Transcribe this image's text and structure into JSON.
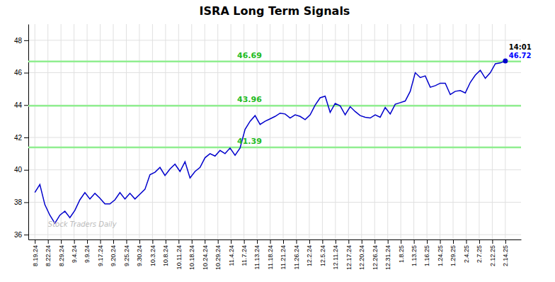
{
  "chart_data": {
    "type": "line",
    "title": "ISRA Long Term Signals",
    "color": "#0000CC",
    "x": [
      0,
      0.383,
      0.766,
      1.1489,
      1.5319,
      1.9149,
      2.2979,
      2.6809,
      3.0638,
      3.4468,
      3.8298,
      4.2128,
      4.5957,
      4.9787,
      5.3617,
      5.7447,
      6.1277,
      6.5106,
      6.8936,
      7.2766,
      7.6596,
      8.0426,
      8.4255,
      8.8085,
      9.1915,
      9.5745,
      9.9574,
      10.3404,
      10.7234,
      11.1064,
      11.4894,
      11.8723,
      12.2553,
      12.6383,
      13.0213,
      13.4043,
      13.7872,
      14.1702,
      14.5532,
      14.9362,
      15.3191,
      15.7021,
      16.0851,
      16.4681,
      16.8511,
      17.234,
      17.617,
      18,
      18.383,
      18.766,
      19.1489,
      19.5319,
      19.9149,
      20.2979,
      20.6809,
      21.0638,
      21.4468,
      21.8298,
      22.2128,
      22.5957,
      22.9787,
      23.3617,
      23.7447,
      24.1277,
      24.5106,
      24.8936,
      25.2766,
      25.6596,
      26.0426,
      26.4255,
      26.8085,
      27.1915,
      27.5745,
      27.9574,
      28.3404,
      28.7234,
      29.1064,
      29.4894,
      29.8723,
      30.2553,
      30.6383,
      31.0213,
      31.4043,
      31.7872,
      32.1702,
      32.5532,
      32.9362,
      33.3191,
      33.7021,
      34.0851,
      34.4681,
      34.8511,
      35.234,
      35.617,
      36
    ],
    "values": [
      38.6,
      39.1,
      37.85,
      37.2,
      36.7,
      37.2,
      37.45,
      37.05,
      37.5,
      38.15,
      38.6,
      38.2,
      38.55,
      38.25,
      37.9,
      37.9,
      38.15,
      38.6,
      38.2,
      38.55,
      38.2,
      38.5,
      38.8,
      39.7,
      39.85,
      40.15,
      39.65,
      40.05,
      40.35,
      39.9,
      40.5,
      39.5,
      39.9,
      40.15,
      40.75,
      41.0,
      40.85,
      41.2,
      41.0,
      41.35,
      40.9,
      41.35,
      42.5,
      43.0,
      43.35,
      42.8,
      43.0,
      43.15,
      43.3,
      43.5,
      43.45,
      43.2,
      43.4,
      43.3,
      43.1,
      43.4,
      44.0,
      44.45,
      44.55,
      43.55,
      44.1,
      43.95,
      43.4,
      43.9,
      43.6,
      43.35,
      43.25,
      43.2,
      43.4,
      43.25,
      43.85,
      43.45,
      44.05,
      44.15,
      44.25,
      44.85,
      46.0,
      45.7,
      45.8,
      45.1,
      45.2,
      45.35,
      45.35,
      44.65,
      44.85,
      44.9,
      44.75,
      45.4,
      45.85,
      46.15,
      45.65,
      46.0,
      46.55,
      46.6,
      46.72
    ],
    "hlines": {
      "values": [
        41.39,
        43.96,
        46.69
      ],
      "labels": [
        "41.39",
        "43.96",
        "46.69"
      ],
      "color": "#90EE90",
      "label_color": "#22bb22"
    },
    "end_labels": [
      {
        "text": "14:01",
        "color": "#000000"
      },
      {
        "text": "46.72",
        "color": "#0000FF"
      }
    ],
    "watermark": {
      "text": "Stock Traders Daily",
      "color": "#bbbbbb"
    },
    "xlim": [
      -0.5,
      37.2
    ],
    "xticks": [
      {
        "value": 0,
        "label": "8.19.24"
      },
      {
        "value": 1,
        "label": "8.22.24"
      },
      {
        "value": 2,
        "label": "8.29.24"
      },
      {
        "value": 3,
        "label": "9.4.24"
      },
      {
        "value": 4,
        "label": "9.9.24"
      },
      {
        "value": 5,
        "label": "9.17.24"
      },
      {
        "value": 6,
        "label": "9.20.24"
      },
      {
        "value": 7,
        "label": "9.25.24"
      },
      {
        "value": 8,
        "label": "9.30.24"
      },
      {
        "value": 9,
        "label": "10.3.24"
      },
      {
        "value": 10,
        "label": "10.8.24"
      },
      {
        "value": 11,
        "label": "10.11.24"
      },
      {
        "value": 12,
        "label": "10.18.24"
      },
      {
        "value": 13,
        "label": "10.24.24"
      },
      {
        "value": 14,
        "label": "10.29.24"
      },
      {
        "value": 15,
        "label": "11.4.24"
      },
      {
        "value": 16,
        "label": "11.7.24"
      },
      {
        "value": 17,
        "label": "11.13.24"
      },
      {
        "value": 18,
        "label": "11.18.24"
      },
      {
        "value": 19,
        "label": "11.21.24"
      },
      {
        "value": 20,
        "label": "11.26.24"
      },
      {
        "value": 21,
        "label": "12.2.24"
      },
      {
        "value": 22,
        "label": "12.5.24"
      },
      {
        "value": 23,
        "label": "12.11.24"
      },
      {
        "value": 24,
        "label": "12.17.24"
      },
      {
        "value": 25,
        "label": "12.20.24"
      },
      {
        "value": 26,
        "label": "12.26.24"
      },
      {
        "value": 27,
        "label": "12.31.24"
      },
      {
        "value": 28,
        "label": "1.8.25"
      },
      {
        "value": 29,
        "label": "1.13.25"
      },
      {
        "value": 30,
        "label": "1.16.25"
      },
      {
        "value": 31,
        "label": "1.24.25"
      },
      {
        "value": 32,
        "label": "1.29.25"
      },
      {
        "value": 33,
        "label": "2.4.25"
      },
      {
        "value": 34,
        "label": "2.7.25"
      },
      {
        "value": 35,
        "label": "2.12.25"
      },
      {
        "value": 36,
        "label": "2.14.25"
      }
    ],
    "ylim": [
      35.7,
      49.0
    ],
    "yticks": [
      36,
      38,
      40,
      42,
      44,
      46,
      48
    ],
    "grid": true
  }
}
